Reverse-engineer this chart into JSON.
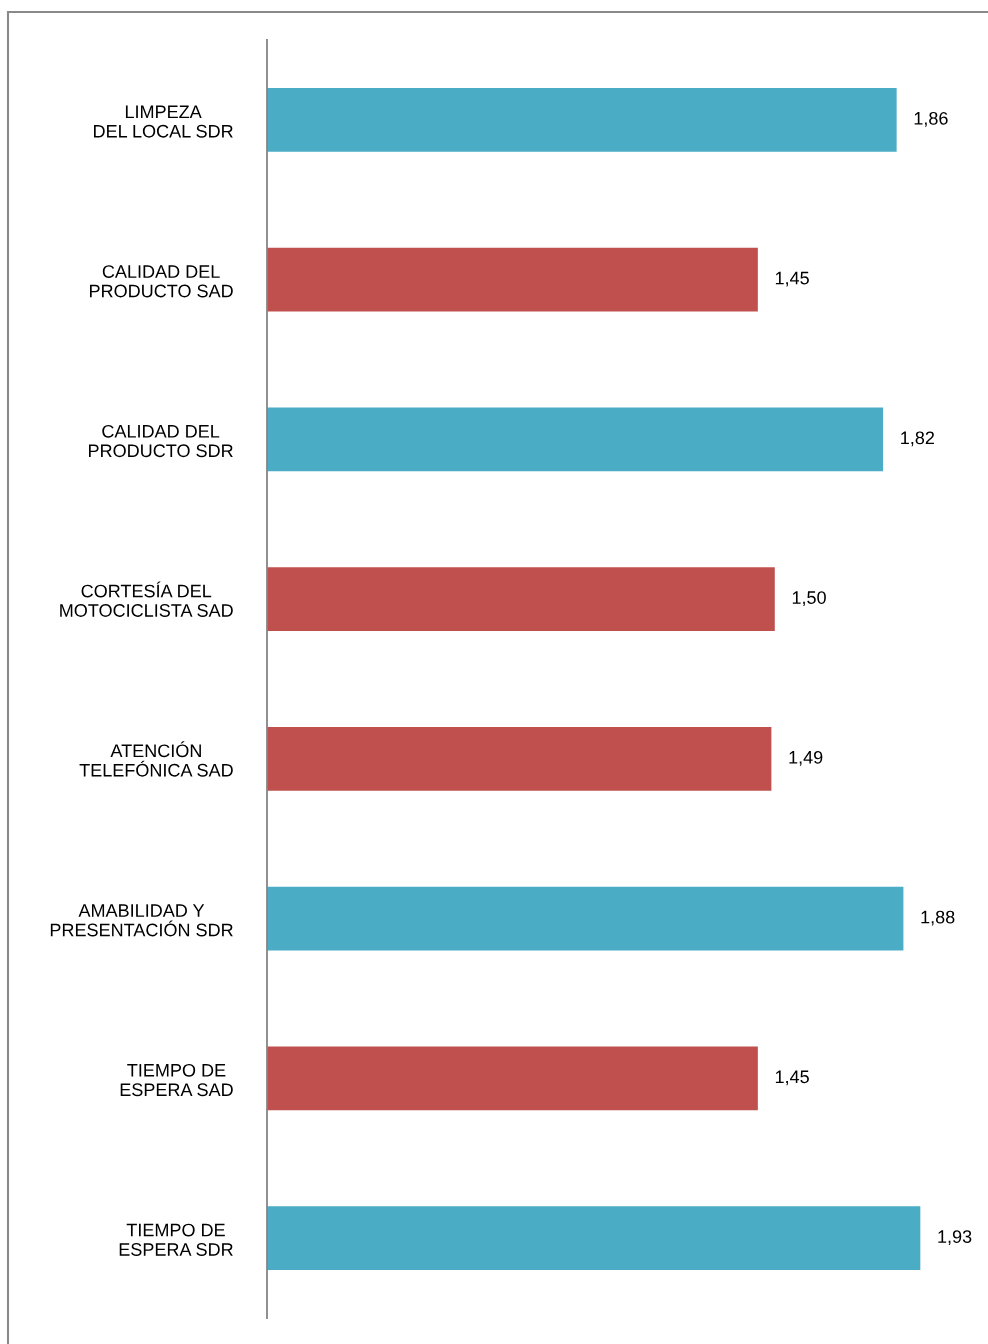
{
  "chart_data": {
    "type": "bar",
    "orientation": "horizontal",
    "categories": [
      "LIMPEZA\nDEL LOCAL SDR",
      "CALIDAD DEL\nPRODUCTO SAD",
      "CALIDAD DEL\nPRODUCTO SDR",
      "CORTESÍA DEL\nMOTOCICLISTA SAD",
      "ATENCIÓN\nTELEFÓNICA SAD",
      "AMABILIDAD Y\nPRESENTACIÓN SDR",
      "TIEMPO DE\nESPERA SAD",
      "TIEMPO DE\nESPERA SDR"
    ],
    "values": [
      1.86,
      1.45,
      1.82,
      1.5,
      1.49,
      1.88,
      1.45,
      1.93
    ],
    "colors": [
      "#4bacc6",
      "#c0504d",
      "#4bacc6",
      "#c0504d",
      "#c0504d",
      "#4bacc6",
      "#c0504d",
      "#4bacc6"
    ],
    "value_labels": [
      "1,86",
      "1,45",
      "1,82",
      "1,50",
      "1,49",
      "1,88",
      "1,45",
      "1,93"
    ],
    "tick_labels": "y"
  }
}
